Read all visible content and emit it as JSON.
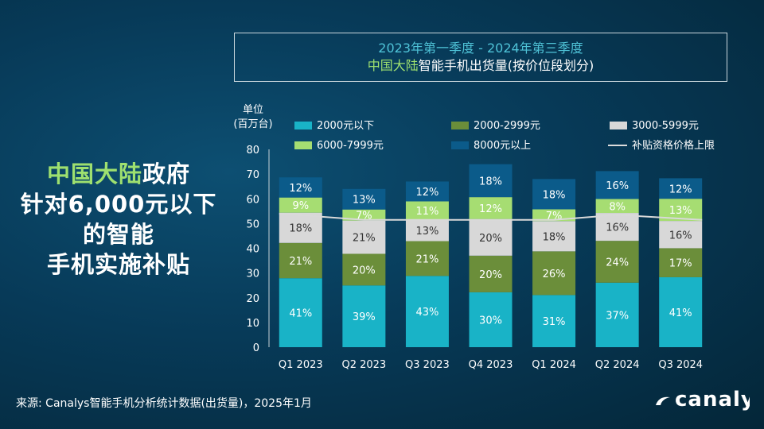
{
  "title": {
    "line1": "2023年第一季度 - 2024年第三季度",
    "line2_highlight": "中国大陆",
    "line2_rest": "智能手机出货量(按价位段划分)"
  },
  "left_text": {
    "line1_highlight": "中国大陆",
    "line1_rest": "政府",
    "line2": "针对6,000元以下",
    "line3": "的智能",
    "line4": "手机实施补贴"
  },
  "unit": {
    "line1": "单位",
    "line2": "(百万台)"
  },
  "source": "来源: Canalys智能手机分析统计数据(出货量)，2025年1月",
  "logo": {
    "text": "canalys"
  },
  "colors": {
    "seg1": "#19b3c7",
    "seg2": "#6b8e3a",
    "seg3": "#d8d8d8",
    "seg4": "#a6dd72",
    "seg5": "#0b5b8a",
    "limit_line": "#d9d9d9"
  },
  "chart_data": {
    "type": "bar",
    "stacked": true,
    "categories": [
      "Q1 2023",
      "Q2 2023",
      "Q3 2023",
      "Q4 2023",
      "Q1 2024",
      "Q2 2024",
      "Q3 2024"
    ],
    "totals": [
      68,
      64,
      67,
      74,
      68,
      70.5,
      69
    ],
    "ylim": [
      0,
      80
    ],
    "yticks": [
      "0",
      "10",
      "20",
      "30",
      "40",
      "50",
      "60",
      "70",
      "80"
    ],
    "series": [
      {
        "name": "2000元以下",
        "labels": [
          "41%",
          "39%",
          "43%",
          "30%",
          "31%",
          "37%",
          "41%"
        ],
        "shares": [
          41,
          39,
          43,
          30,
          31,
          37,
          41
        ]
      },
      {
        "name": "2000-2999元",
        "labels": [
          "21%",
          "20%",
          "21%",
          "20%",
          "26%",
          "24%",
          "17%"
        ],
        "shares": [
          21,
          20,
          21,
          20,
          26,
          24,
          17
        ]
      },
      {
        "name": "3000-5999元",
        "labels": [
          "18%",
          "21%",
          "13%",
          "20%",
          "18%",
          "16%",
          "16%"
        ],
        "shares": [
          18,
          21,
          13,
          20,
          18,
          16,
          16
        ]
      },
      {
        "name": "6000-7999元",
        "labels": [
          "9%",
          "7%",
          "11%",
          "12%",
          "7%",
          "8%",
          "13%"
        ],
        "shares": [
          9,
          7,
          11,
          12,
          7,
          8,
          13
        ]
      },
      {
        "name": "8000元以上",
        "labels": [
          "12%",
          "13%",
          "12%",
          "18%",
          "18%",
          "16%",
          "12%"
        ],
        "shares": [
          12,
          13,
          12,
          18,
          18,
          16,
          12
        ]
      }
    ],
    "line_series": {
      "name": "补贴资格价格上限",
      "values": [
        54,
        51.5,
        51.5,
        51.5,
        51.5,
        53.5,
        51.5
      ]
    },
    "grid": false,
    "legend_position": "top"
  }
}
